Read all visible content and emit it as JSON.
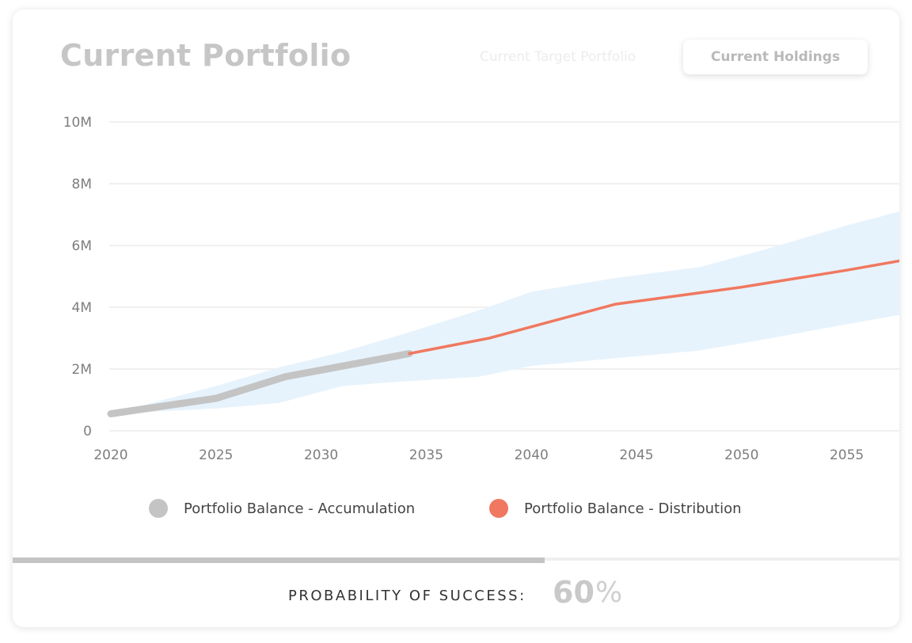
{
  "header": {
    "title": "Current Portfolio",
    "tabs": [
      {
        "label": "Current Target Portfolio",
        "active": false
      },
      {
        "label": "Current Holdings",
        "active": true
      }
    ]
  },
  "chart_data": {
    "type": "line",
    "title": "",
    "xlabel": "",
    "ylabel": "",
    "x_ticks": [
      "2020",
      "2025",
      "2030",
      "2035",
      "2040",
      "2045",
      "2050",
      "2055"
    ],
    "y_ticks": [
      "0",
      "2M",
      "4M",
      "6M",
      "8M",
      "10M"
    ],
    "xlim": [
      2020,
      2057.5
    ],
    "ylim": [
      0,
      10000000
    ],
    "grid": true,
    "series": [
      {
        "name": "Portfolio Balance - Accumulation",
        "color": "#c4c4c4",
        "x": [
          2020,
          2025,
          2028.3,
          2034.2
        ],
        "y": [
          550000,
          1050000,
          1750000,
          2500000
        ]
      },
      {
        "name": "Portfolio Balance - Distribution",
        "color": "#f07860",
        "x": [
          2034.2,
          2038,
          2044,
          2050,
          2055,
          2057.5
        ],
        "y": [
          2500000,
          3000000,
          4100000,
          4650000,
          5200000,
          5500000
        ]
      }
    ],
    "confidence_band": {
      "color": "#e7f3fc",
      "x": [
        2020,
        2025,
        2028,
        2031,
        2034,
        2037.5,
        2040,
        2044,
        2048,
        2051,
        2055,
        2057.5
      ],
      "upper": [
        550000,
        1450000,
        2050000,
        2550000,
        3150000,
        3900000,
        4500000,
        4950000,
        5300000,
        5850000,
        6650000,
        7100000
      ],
      "lower": [
        550000,
        720000,
        900000,
        1450000,
        1600000,
        1750000,
        2100000,
        2350000,
        2600000,
        2950000,
        3450000,
        3750000
      ]
    },
    "legend": "bottom-center"
  },
  "footer": {
    "probability_label": "PROBABILITY OF SUCCESS:",
    "probability_value": "60",
    "probability_unit": "%",
    "scroll_progress": 0.6
  }
}
